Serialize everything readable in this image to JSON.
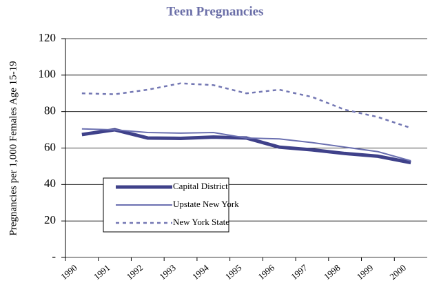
{
  "chart_data": {
    "type": "line",
    "title": "Teen Pregnancies",
    "y_label": "Pregnancies per 1,000 Females Age 15-19",
    "categories": [
      "1990",
      "1991",
      "1992",
      "1993",
      "1994",
      "1995",
      "1996",
      "1997",
      "1998",
      "1999",
      "2000"
    ],
    "series": [
      {
        "name": "Capital District",
        "color": "#3f418a",
        "style": "thick",
        "values": [
          67.4,
          70,
          65.5,
          65.3,
          66,
          65.5,
          60.5,
          59,
          57,
          55.5,
          52
        ]
      },
      {
        "name": "Upstate New York",
        "color": "#6a6fb0",
        "style": "thin",
        "values": [
          70.5,
          70,
          68.5,
          68.2,
          68.5,
          65.5,
          65,
          63,
          60.5,
          58,
          53
        ]
      },
      {
        "name": "New York State",
        "color": "#7377b3",
        "style": "dashed",
        "values": [
          90,
          89.5,
          92,
          95.5,
          94.5,
          90,
          92,
          88,
          81,
          77,
          71
        ]
      }
    ],
    "ylim": [
      0,
      120
    ],
    "yticks": [
      {
        "value": 0,
        "label": "-"
      },
      20,
      40,
      60,
      80,
      100,
      120
    ],
    "grid": true,
    "legend": "lower-left"
  }
}
